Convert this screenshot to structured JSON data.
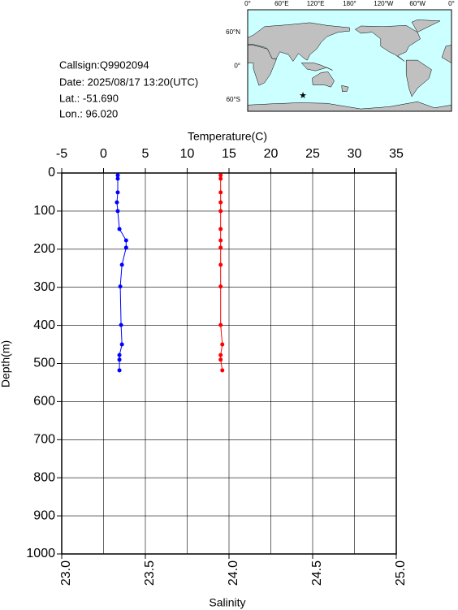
{
  "info": {
    "lines": [
      "Callsign:Q9902094",
      "Date:  2025/08/17 13:20(UTC)",
      "Lat.:  -51.690",
      "Lon.:   96.020"
    ]
  },
  "map": {
    "lon_labels": [
      "0°",
      "60°E",
      "120°E",
      "180°",
      "120°W",
      "60°W",
      "0°"
    ],
    "lat_labels": [
      "60°N",
      "0°",
      "60°S"
    ]
  },
  "chart_data": {
    "type": "line",
    "xlabel": "Temperature(C)",
    "x2label": "Salinity",
    "ylabel": "Depth(m)",
    "xlim": [
      -5,
      35
    ],
    "xticks": [
      -5,
      0,
      5,
      10,
      15,
      20,
      25,
      30,
      35
    ],
    "x2lim": [
      23,
      25
    ],
    "x2ticks": [
      {
        "value": 23,
        "label": "23.0"
      },
      {
        "value": 23.5,
        "label": "23.5"
      },
      {
        "value": 24,
        "label": "24.0"
      },
      {
        "value": 24.5,
        "label": "24.5"
      },
      {
        "value": 25,
        "label": "25.0"
      }
    ],
    "ylim": [
      0,
      1000
    ],
    "yticks": [
      0,
      100,
      200,
      300,
      400,
      500,
      600,
      700,
      800,
      900,
      1000
    ],
    "y_inverted": true,
    "grid": true,
    "y": [
      6,
      15,
      51,
      77,
      100,
      147,
      177,
      196,
      241,
      298,
      399,
      450,
      478,
      490,
      518
    ],
    "series": [
      {
        "color": "#0000ff",
        "axis": "x",
        "values": [
          1.7,
          1.7,
          1.7,
          1.6,
          1.7,
          1.9,
          2.7,
          2.7,
          2.2,
          2.0,
          2.1,
          2.2,
          1.9,
          1.9,
          1.9
        ]
      },
      {
        "color": "#ff0000",
        "axis": "x2",
        "values": [
          23.95,
          23.95,
          23.95,
          23.95,
          23.95,
          23.95,
          23.95,
          23.95,
          23.95,
          23.95,
          23.95,
          23.96,
          23.95,
          23.95,
          23.96
        ]
      }
    ]
  }
}
